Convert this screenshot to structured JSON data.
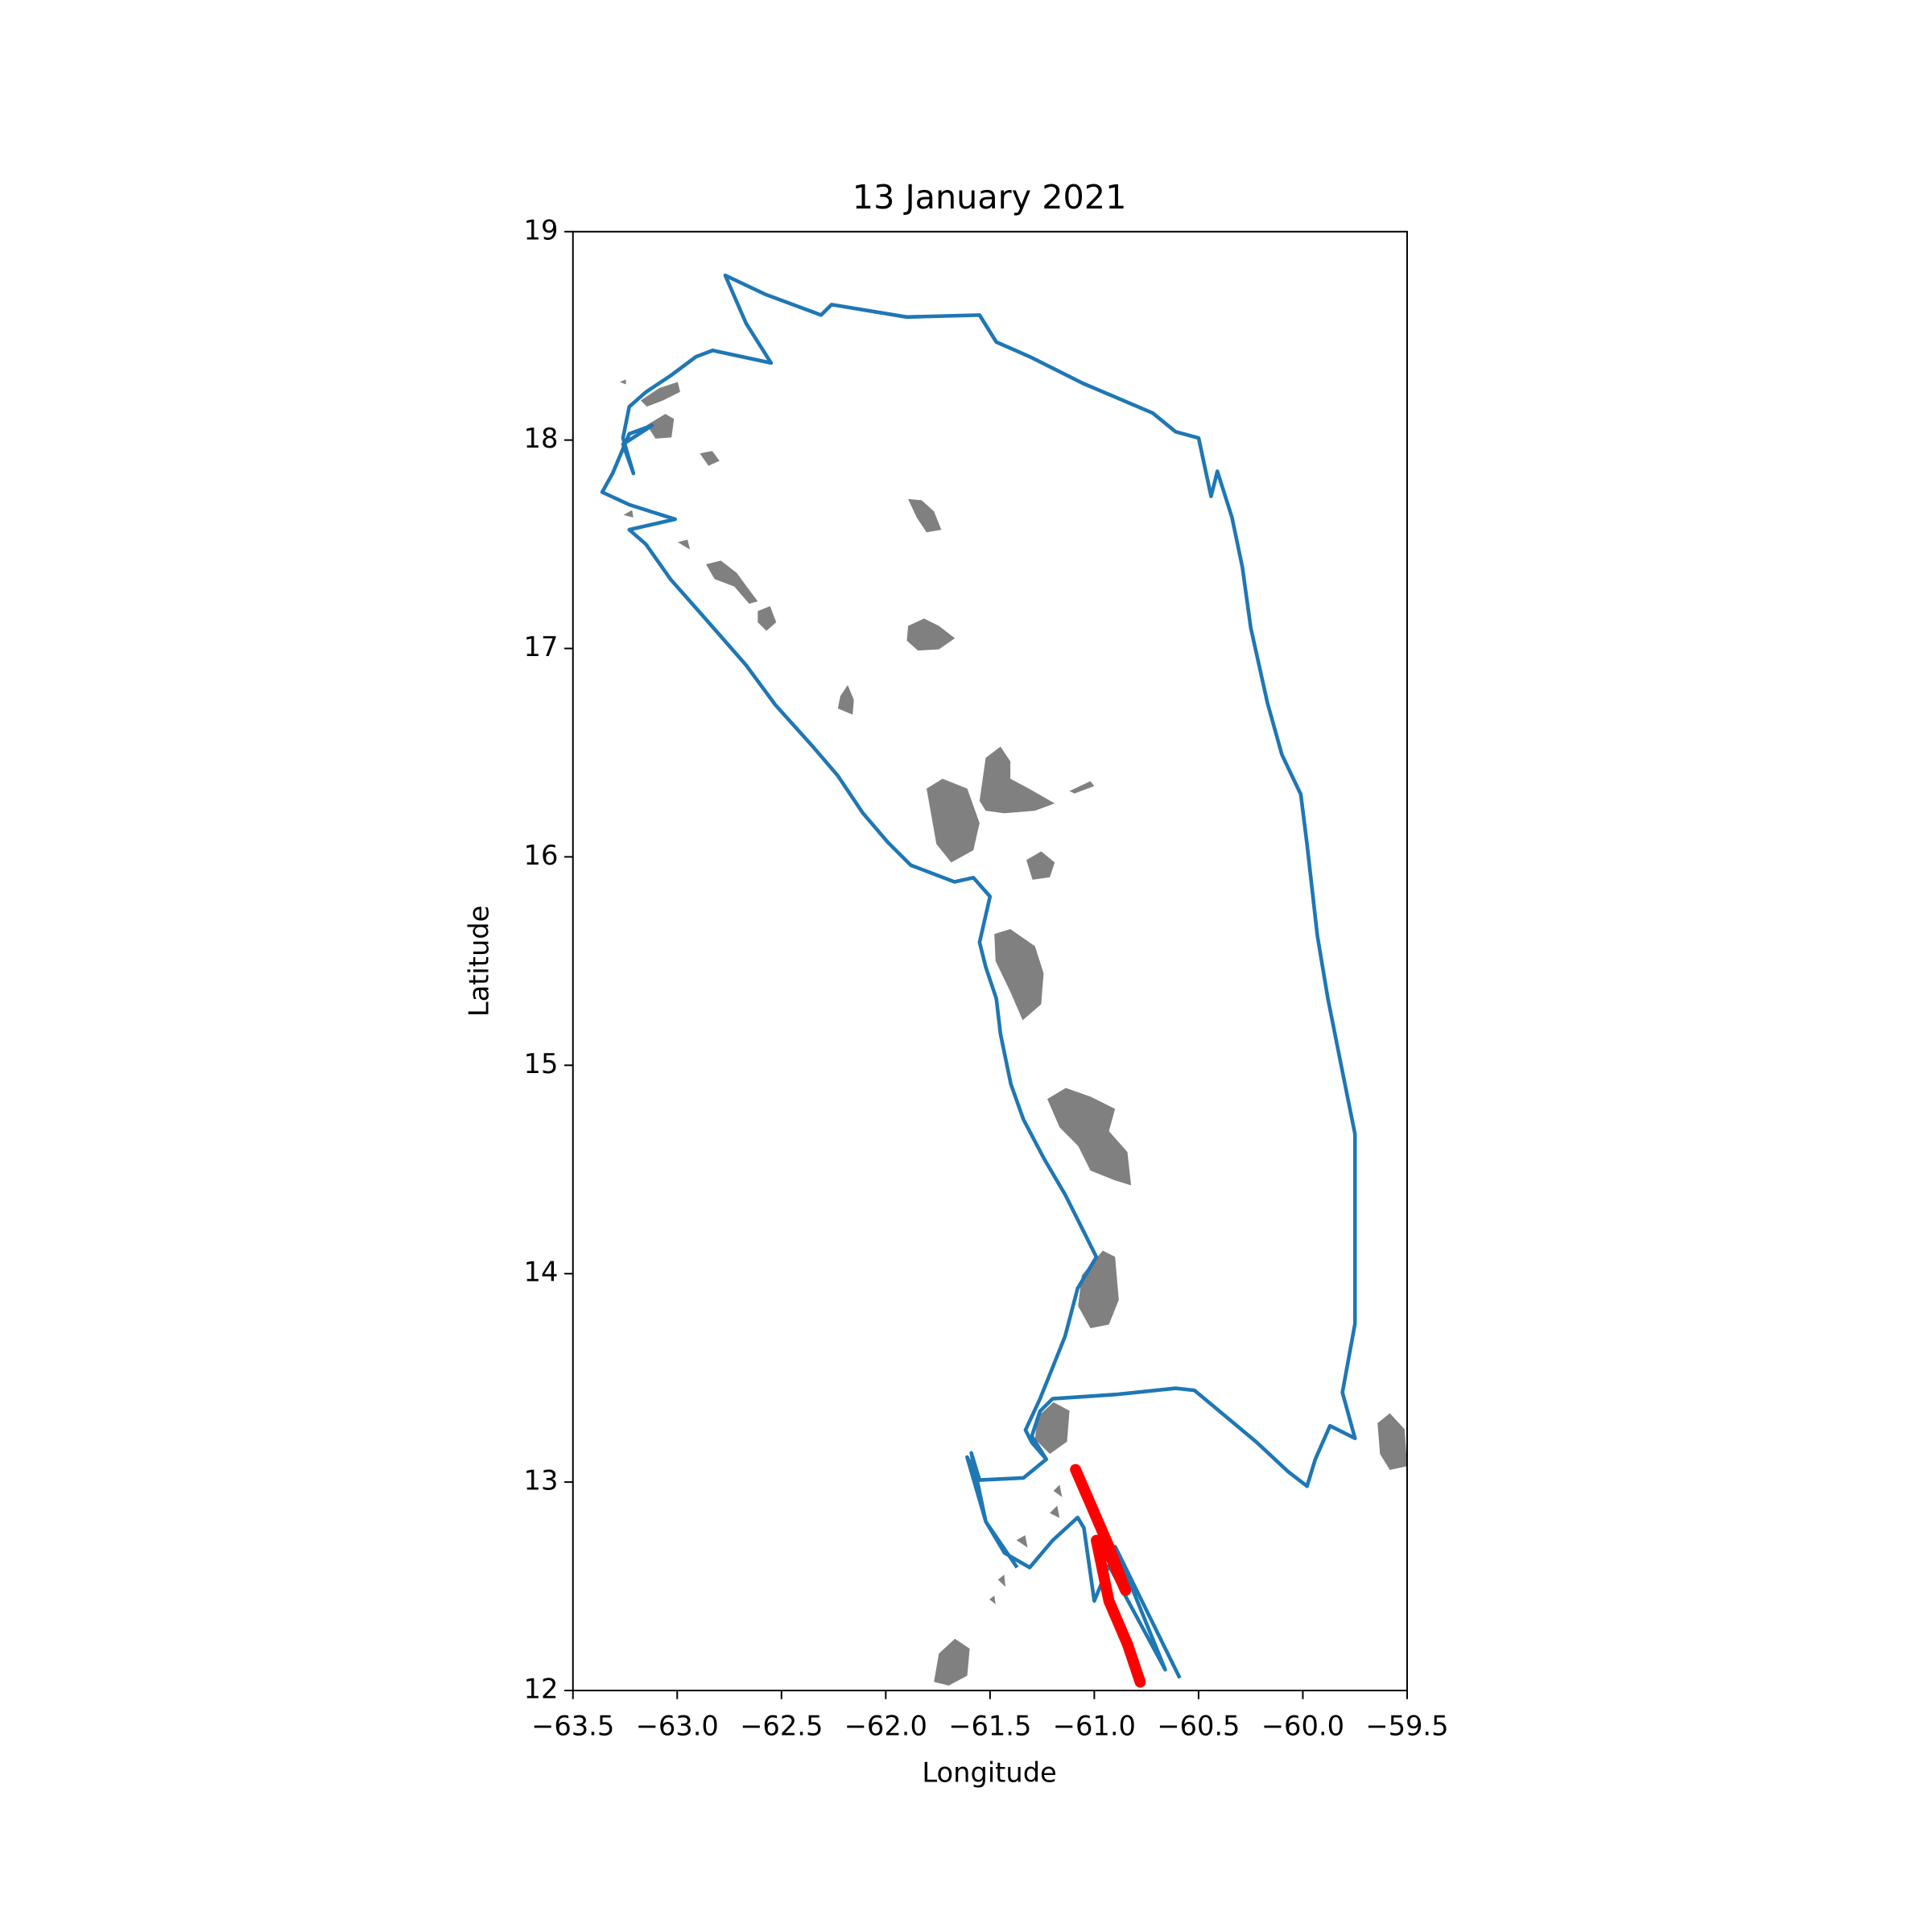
{
  "chart_data": {
    "type": "line",
    "title": "13 January 2021",
    "x_label": "Longitude",
    "y_label": "Latitude",
    "xlim": [
      -63.5,
      -59.5
    ],
    "ylim": [
      12,
      19
    ],
    "xticks": [
      {
        "value": -63.5,
        "label": "−63.5"
      },
      {
        "value": -63.0,
        "label": "−63.0"
      },
      {
        "value": -62.5,
        "label": "−62.5"
      },
      {
        "value": -62.0,
        "label": "−62.0"
      },
      {
        "value": -61.5,
        "label": "−61.5"
      },
      {
        "value": -61.0,
        "label": "−61.0"
      },
      {
        "value": -60.5,
        "label": "−60.5"
      },
      {
        "value": -60.0,
        "label": "−60.0"
      },
      {
        "value": -59.5,
        "label": "−59.5"
      }
    ],
    "yticks": [
      12,
      13,
      14,
      15,
      16,
      17,
      18,
      19
    ],
    "series": [
      {
        "color": "#1f77b4",
        "x": [
          -60.59,
          -60.87,
          -60.9,
          -60.66,
          -60.93,
          -61.0,
          -61.05,
          -61.08,
          -61.2,
          -61.31,
          -61.43,
          -61.52,
          -61.61,
          -61.55,
          -61.34,
          -61.23,
          -61.3,
          -61.26,
          -61.2,
          -60.9,
          -60.61,
          -60.52,
          -60.4,
          -60.22,
          -60.07,
          -59.98,
          -59.94,
          -59.87,
          -59.75,
          -59.81,
          -59.75,
          -59.75,
          -59.75,
          -59.81,
          -59.88,
          -59.93,
          -59.98,
          -60.01,
          -60.1,
          -60.17,
          -60.25,
          -60.29,
          -60.34,
          -60.41,
          -60.44,
          -60.5,
          -60.61,
          -60.72,
          -61.05,
          -61.31,
          -61.47,
          -61.55,
          -61.9,
          -62.26,
          -62.31,
          -62.58,
          -62.77,
          -62.67,
          -62.55,
          -62.83,
          -62.91,
          -63.03,
          -63.15,
          -63.23,
          -63.26,
          -63.21,
          -63.26,
          -63.12,
          -63.23,
          -63.31,
          -63.36,
          -63.23,
          -63.01,
          -63.23,
          -63.15,
          -63.03,
          -62.88,
          -62.67,
          -62.53,
          -62.35,
          -62.23,
          -62.11,
          -61.99,
          -61.88,
          -61.67,
          -61.58,
          -61.5,
          -61.55,
          -61.52,
          -61.47,
          -61.45,
          -61.4,
          -61.34,
          -61.24,
          -61.14,
          -61.05,
          -60.99,
          -61.08,
          -61.14,
          -61.2,
          -61.26,
          -61.33,
          -61.3,
          -61.23,
          -61.34,
          -61.55,
          -61.59,
          -61.52,
          -61.37
        ],
        "values": [
          12.06,
          12.63,
          12.69,
          12.1,
          12.6,
          12.43,
          12.78,
          12.83,
          12.72,
          12.59,
          12.66,
          12.81,
          13.12,
          13.01,
          13.02,
          13.11,
          13.22,
          13.34,
          13.4,
          13.42,
          13.45,
          13.44,
          13.34,
          13.19,
          13.05,
          12.98,
          13.11,
          13.27,
          13.21,
          13.43,
          13.76,
          14.08,
          14.67,
          14.97,
          15.32,
          15.62,
          16.06,
          16.3,
          16.49,
          16.74,
          17.1,
          17.39,
          17.63,
          17.85,
          17.73,
          18.01,
          18.04,
          18.13,
          18.27,
          18.4,
          18.47,
          18.6,
          18.59,
          18.65,
          18.6,
          18.7,
          18.79,
          18.56,
          18.37,
          18.43,
          18.4,
          18.31,
          18.23,
          18.16,
          18.01,
          17.84,
          17.98,
          18.07,
          18.03,
          17.84,
          17.75,
          17.69,
          17.62,
          17.57,
          17.5,
          17.33,
          17.16,
          16.92,
          16.73,
          16.53,
          16.39,
          16.21,
          16.07,
          15.96,
          15.88,
          15.9,
          15.81,
          15.59,
          15.47,
          15.32,
          15.15,
          14.91,
          14.74,
          14.55,
          14.38,
          14.2,
          14.08,
          13.93,
          13.7,
          13.55,
          13.4,
          13.25,
          13.19,
          13.11,
          13.02,
          13.01,
          13.14,
          12.81,
          12.59
        ]
      },
      {
        "color": "#ff0000",
        "x": [
          -61.09,
          -61.02,
          -60.93,
          -60.85,
          -60.93,
          -60.99,
          -60.93,
          -60.84,
          -60.78
        ],
        "values": [
          13.06,
          12.9,
          12.69,
          12.48,
          12.66,
          12.72,
          12.43,
          12.22,
          12.04
        ]
      }
    ]
  }
}
